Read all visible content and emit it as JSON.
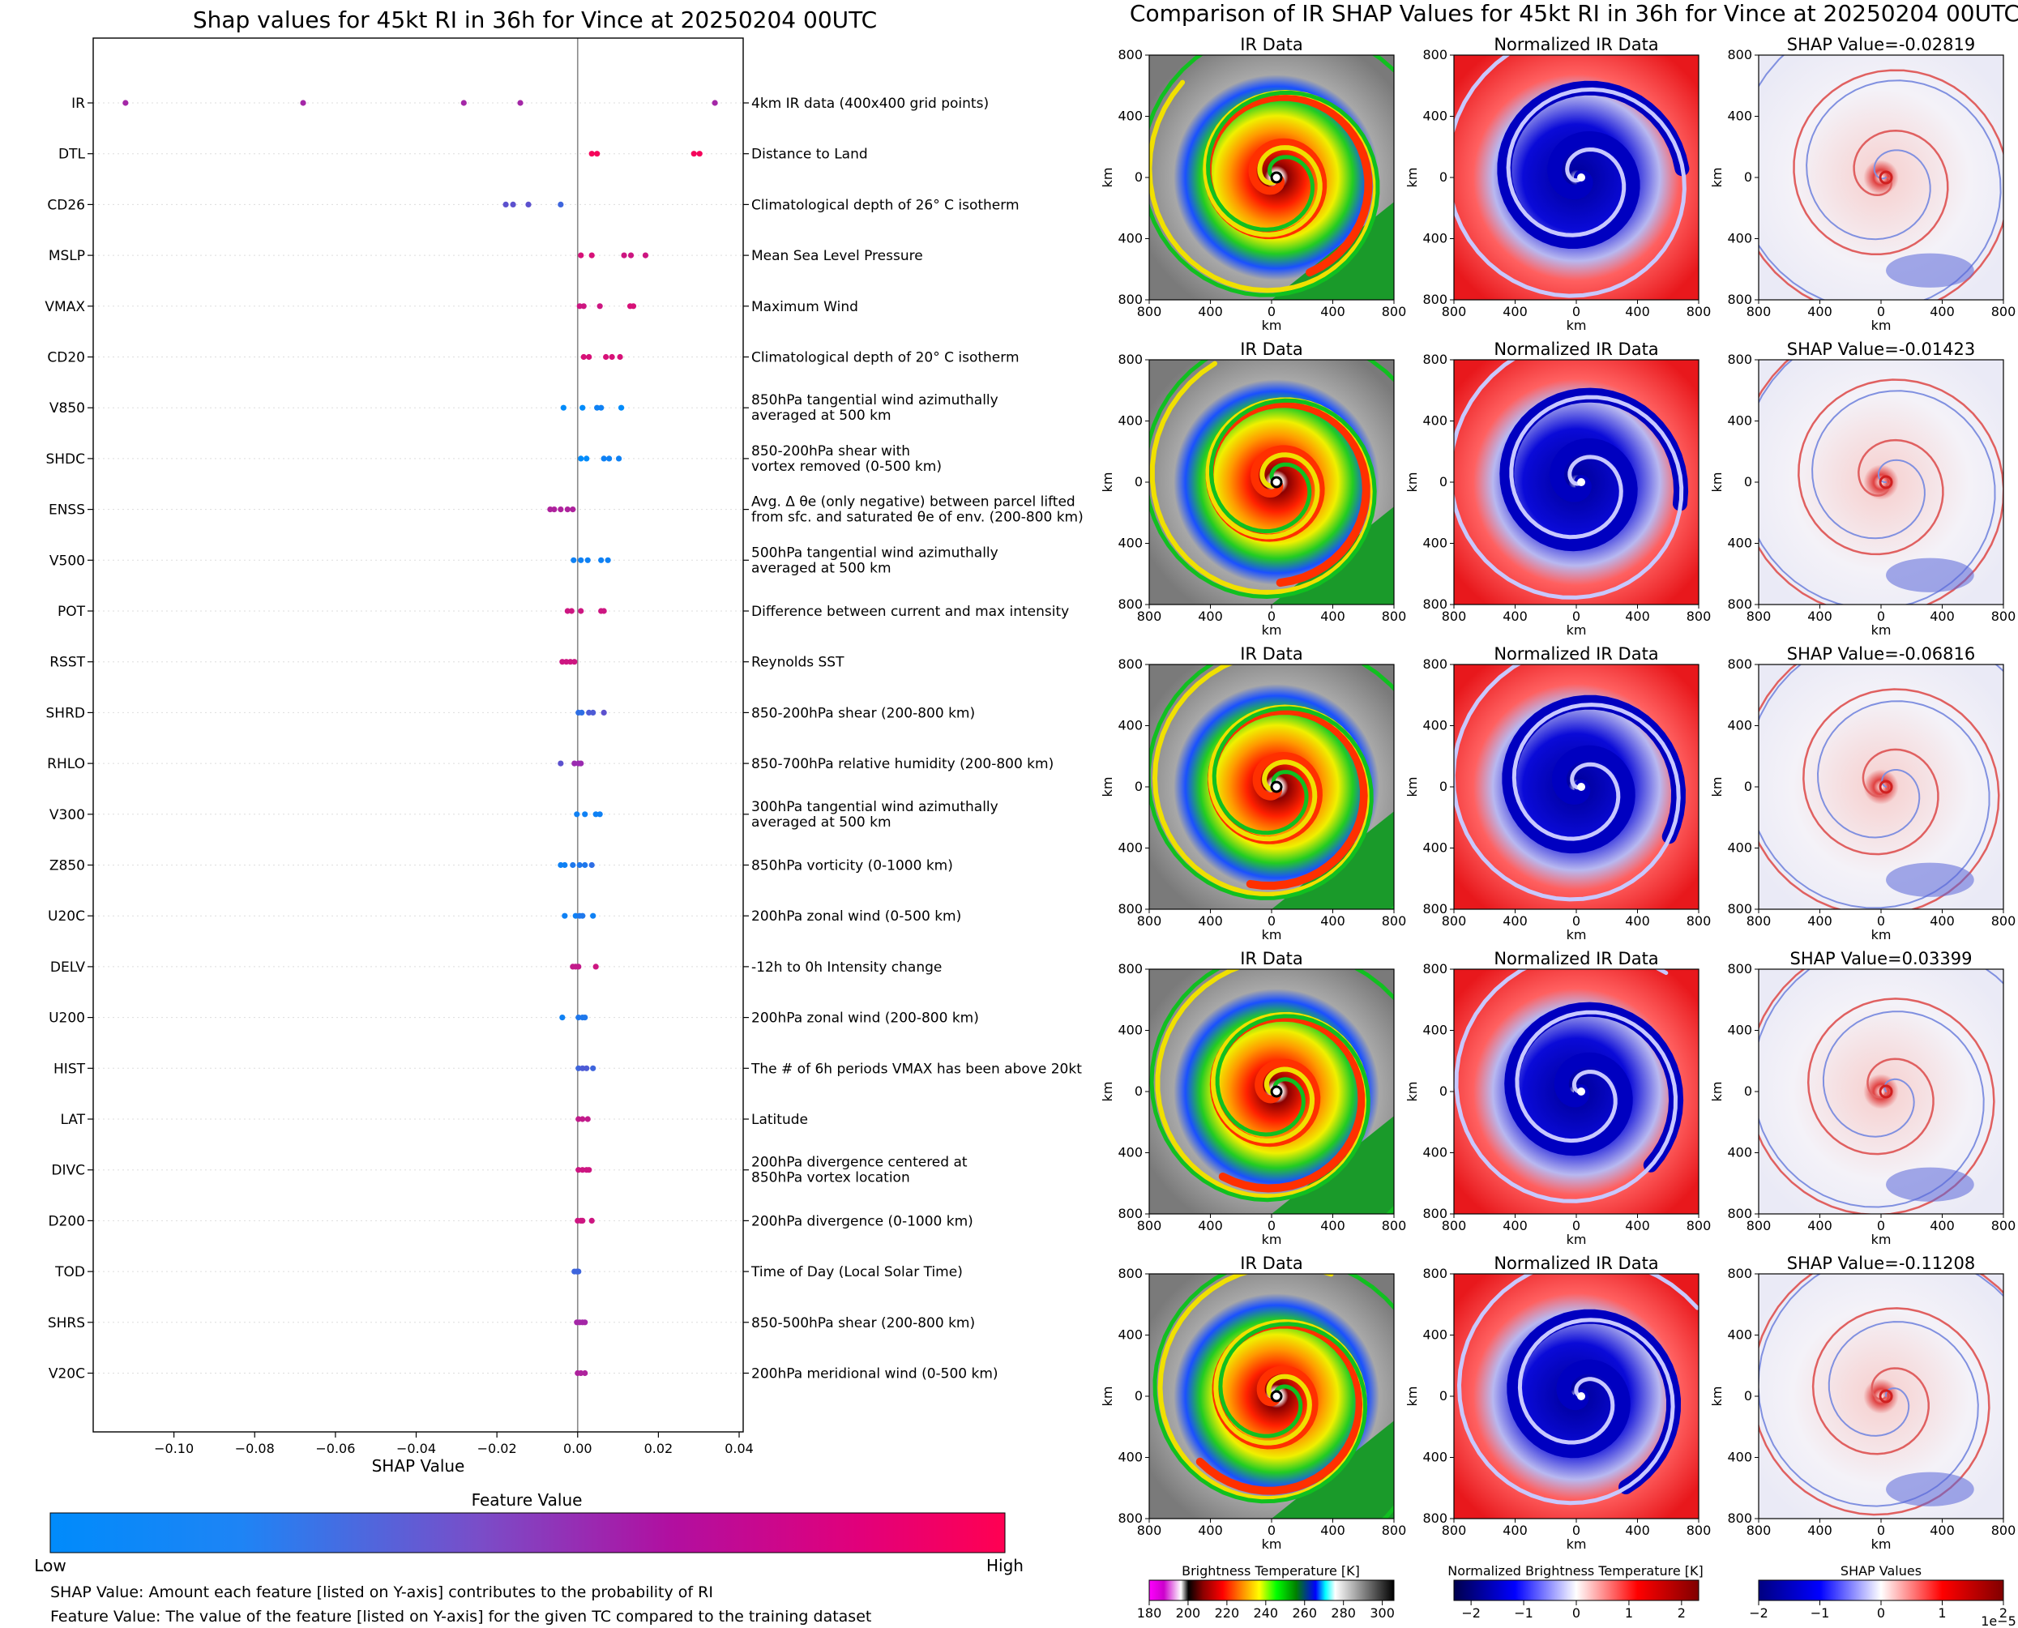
{
  "left": {
    "title": "Shap values for 45kt RI in 36h for Vince at 20250204 00UTC",
    "xlabel": "SHAP Value",
    "colorbar_title": "Feature Value",
    "colorbar_low": "Low",
    "colorbar_high": "High",
    "note1": "SHAP Value: Amount each feature [listed on Y-axis] contributes to the probability of RI",
    "note2": "Feature Value: The value of the feature [listed on Y-axis] for the given TC compared to the training dataset"
  },
  "right": {
    "title": "Comparison of IR SHAP Values for 45kt RI in 36h for Vince at 20250204 00UTC",
    "col1_title": "IR Data",
    "col2_title": "Normalized IR Data",
    "shap_titles": [
      "SHAP Value=-0.02819",
      "SHAP Value=-0.01423",
      "SHAP Value=-0.06816",
      "SHAP Value=0.03399",
      "SHAP Value=-0.11208"
    ],
    "axis_unit": "km",
    "x_ticks": [
      "800",
      "400",
      "0",
      "400",
      "800"
    ],
    "y_ticks": [
      "800",
      "400",
      "0",
      "400",
      "800"
    ],
    "cb1_title": "Brightness Temperature [K]",
    "cb1_ticks": [
      "180",
      "200",
      "220",
      "240",
      "260",
      "280",
      "300"
    ],
    "cb2_title": "Normalized Brightness Temperature [K]",
    "cb2_ticks": [
      "−2",
      "−1",
      "0",
      "1",
      "2"
    ],
    "cb3_title": "SHAP Values",
    "cb3_ticks": [
      "−2",
      "−1",
      "0",
      "1",
      "2"
    ],
    "cb3_exponent": "1e−5"
  },
  "colors": {
    "low": "#008bfb",
    "mid": "#9a2bb0",
    "high": "#ff0052",
    "ir_gray": "#8c8c8c",
    "norm_red": "#e8181c",
    "norm_blue": "#1010d0"
  },
  "chart_data": {
    "type": "scatter",
    "title": "Shap values for 45kt RI in 36h for Vince at 20250204 00UTC",
    "xlabel": "SHAP Value",
    "xlim": [
      -0.12,
      0.041
    ],
    "xticks": [
      -0.1,
      -0.08,
      -0.06,
      -0.04,
      -0.02,
      0.0,
      0.02,
      0.04
    ],
    "xtick_labels": [
      "−0.10",
      "−0.08",
      "−0.06",
      "−0.04",
      "−0.02",
      "0.00",
      "0.02",
      "0.04"
    ],
    "features": [
      {
        "name": "IR",
        "desc": [
          "4km IR data (400x400 grid points)"
        ],
        "points": [
          [
            -0.112,
            0.55
          ],
          [
            -0.068,
            0.55
          ],
          [
            -0.0282,
            0.55
          ],
          [
            -0.0142,
            0.55
          ],
          [
            0.034,
            0.55
          ]
        ]
      },
      {
        "name": "DTL",
        "desc": [
          "Distance to Land"
        ],
        "points": [
          [
            0.0035,
            0.95
          ],
          [
            0.0048,
            0.95
          ],
          [
            0.0288,
            0.95
          ],
          [
            0.0302,
            0.95
          ]
        ]
      },
      {
        "name": "CD26",
        "desc": [
          "Climatological depth of 26° C isotherm"
        ],
        "points": [
          [
            -0.0178,
            0.3
          ],
          [
            -0.016,
            0.3
          ],
          [
            -0.0122,
            0.3
          ],
          [
            -0.0042,
            0.2
          ]
        ]
      },
      {
        "name": "MSLP",
        "desc": [
          "Mean Sea Level Pressure"
        ],
        "points": [
          [
            0.0008,
            0.8
          ],
          [
            0.0035,
            0.8
          ],
          [
            0.0115,
            0.75
          ],
          [
            0.0132,
            0.75
          ],
          [
            0.0168,
            0.75
          ]
        ]
      },
      {
        "name": "VMAX",
        "desc": [
          "Maximum Wind"
        ],
        "points": [
          [
            0.0005,
            0.75
          ],
          [
            0.0015,
            0.75
          ],
          [
            0.0055,
            0.75
          ],
          [
            0.013,
            0.8
          ],
          [
            0.0138,
            0.8
          ]
        ]
      },
      {
        "name": "CD20",
        "desc": [
          "Climatological depth of 20° C isotherm"
        ],
        "points": [
          [
            0.0015,
            0.8
          ],
          [
            0.0028,
            0.8
          ],
          [
            0.007,
            0.8
          ],
          [
            0.0085,
            0.8
          ],
          [
            0.0105,
            0.8
          ]
        ]
      },
      {
        "name": "V850",
        "desc": [
          "850hPa tangential wind azimuthally",
          "averaged at 500 km"
        ],
        "points": [
          [
            -0.0035,
            0.0
          ],
          [
            0.0012,
            0.0
          ],
          [
            0.0048,
            0.05
          ],
          [
            0.0058,
            0.05
          ],
          [
            0.0108,
            0.0
          ]
        ]
      },
      {
        "name": "SHDC",
        "desc": [
          "850-200hPa shear with",
          "vortex removed (0-500 km)"
        ],
        "points": [
          [
            0.0008,
            0.0
          ],
          [
            0.0022,
            0.0
          ],
          [
            0.0065,
            0.05
          ],
          [
            0.0078,
            0.05
          ],
          [
            0.0102,
            0.05
          ]
        ]
      },
      {
        "name": "ENSS",
        "desc": [
          "Avg. Δ θe (only negative) between parcel lifted",
          "from sfc. and saturated θe of env. (200-800 km)"
        ],
        "points": [
          [
            -0.0068,
            0.6
          ],
          [
            -0.0058,
            0.6
          ],
          [
            -0.0042,
            0.6
          ],
          [
            -0.0025,
            0.6
          ],
          [
            -0.0012,
            0.6
          ]
        ]
      },
      {
        "name": "V500",
        "desc": [
          "500hPa tangential wind azimuthally",
          "averaged at 500 km"
        ],
        "points": [
          [
            -0.001,
            0.05
          ],
          [
            0.0008,
            0.05
          ],
          [
            0.0025,
            0.05
          ],
          [
            0.0058,
            0.05
          ],
          [
            0.0075,
            0.05
          ]
        ]
      },
      {
        "name": "POT",
        "desc": [
          "Difference between current and max intensity"
        ],
        "points": [
          [
            -0.0025,
            0.75
          ],
          [
            -0.0015,
            0.75
          ],
          [
            0.0008,
            0.75
          ],
          [
            0.0058,
            0.75
          ],
          [
            0.0065,
            0.75
          ]
        ]
      },
      {
        "name": "RSST",
        "desc": [
          "Reynolds SST"
        ],
        "points": [
          [
            -0.0038,
            0.75
          ],
          [
            -0.0028,
            0.75
          ],
          [
            -0.0018,
            0.75
          ],
          [
            -0.0008,
            0.75
          ]
        ]
      },
      {
        "name": "SHRD",
        "desc": [
          "850-200hPa shear (200-800 km)"
        ],
        "points": [
          [
            0.0002,
            0.15
          ],
          [
            0.001,
            0.15
          ],
          [
            0.0028,
            0.25
          ],
          [
            0.0038,
            0.25
          ],
          [
            0.0065,
            0.3
          ]
        ]
      },
      {
        "name": "RHLO",
        "desc": [
          "850-700hPa relative humidity (200-800 km)"
        ],
        "points": [
          [
            -0.0042,
            0.3
          ],
          [
            -0.0008,
            0.5
          ],
          [
            0.0002,
            0.5
          ],
          [
            0.0008,
            0.5
          ]
        ]
      },
      {
        "name": "V300",
        "desc": [
          "300hPa tangential wind azimuthally",
          "averaged at 500 km"
        ],
        "points": [
          [
            -0.0002,
            0.05
          ],
          [
            0.0018,
            0.05
          ],
          [
            0.0045,
            0.05
          ],
          [
            0.0055,
            0.05
          ]
        ]
      },
      {
        "name": "Z850",
        "desc": [
          "850hPa vorticity (0-1000 km)"
        ],
        "points": [
          [
            -0.0042,
            0.05
          ],
          [
            -0.0032,
            0.05
          ],
          [
            -0.0012,
            0.1
          ],
          [
            0.0005,
            0.1
          ],
          [
            0.0018,
            0.1
          ],
          [
            0.0035,
            0.15
          ]
        ]
      },
      {
        "name": "U20C",
        "desc": [
          "200hPa zonal wind (0-500 km)"
        ],
        "points": [
          [
            -0.0032,
            0.05
          ],
          [
            -0.0005,
            0.05
          ],
          [
            0.0005,
            0.1
          ],
          [
            0.0012,
            0.1
          ],
          [
            0.0038,
            0.05
          ]
        ]
      },
      {
        "name": "DELV",
        "desc": [
          "-12h to 0h Intensity change"
        ],
        "points": [
          [
            -0.0012,
            0.7
          ],
          [
            -0.0005,
            0.7
          ],
          [
            0.0002,
            0.7
          ],
          [
            0.0045,
            0.75
          ]
        ]
      },
      {
        "name": "U200",
        "desc": [
          "200hPa zonal wind (200-800 km)"
        ],
        "points": [
          [
            -0.0038,
            0.05
          ],
          [
            0.0002,
            0.1
          ],
          [
            0.0012,
            0.1
          ],
          [
            0.0018,
            0.1
          ]
        ]
      },
      {
        "name": "HIST",
        "desc": [
          "The # of 6h periods VMAX has been above 20kt"
        ],
        "points": [
          [
            0.0002,
            0.2
          ],
          [
            0.0012,
            0.25
          ],
          [
            0.0022,
            0.25
          ],
          [
            0.0038,
            0.2
          ]
        ]
      },
      {
        "name": "LAT",
        "desc": [
          "Latitude"
        ],
        "points": [
          [
            0.0002,
            0.7
          ],
          [
            0.0012,
            0.7
          ],
          [
            0.0025,
            0.7
          ]
        ]
      },
      {
        "name": "DIVC",
        "desc": [
          "200hPa divergence centered at",
          "850hPa vortex location"
        ],
        "points": [
          [
            0.0002,
            0.75
          ],
          [
            0.0012,
            0.75
          ],
          [
            0.0022,
            0.75
          ],
          [
            0.0028,
            0.75
          ]
        ]
      },
      {
        "name": "D200",
        "desc": [
          "200hPa divergence (0-1000 km)"
        ],
        "points": [
          [
            0.0,
            0.75
          ],
          [
            0.0008,
            0.75
          ],
          [
            0.0012,
            0.75
          ],
          [
            0.0035,
            0.75
          ]
        ]
      },
      {
        "name": "TOD",
        "desc": [
          "Time of Day (Local Solar Time)"
        ],
        "points": [
          [
            -0.0008,
            0.2
          ],
          [
            -0.0002,
            0.2
          ],
          [
            0.0002,
            0.2
          ]
        ]
      },
      {
        "name": "SHRS",
        "desc": [
          "850-500hPa shear (200-800 km)"
        ],
        "points": [
          [
            -0.0002,
            0.55
          ],
          [
            0.0005,
            0.55
          ],
          [
            0.0012,
            0.55
          ],
          [
            0.0018,
            0.55
          ]
        ]
      },
      {
        "name": "V20C",
        "desc": [
          "200hPa meridional wind (0-500 km)"
        ],
        "points": [
          [
            0.0,
            0.6
          ],
          [
            0.0008,
            0.6
          ],
          [
            0.0018,
            0.6
          ]
        ]
      }
    ]
  }
}
